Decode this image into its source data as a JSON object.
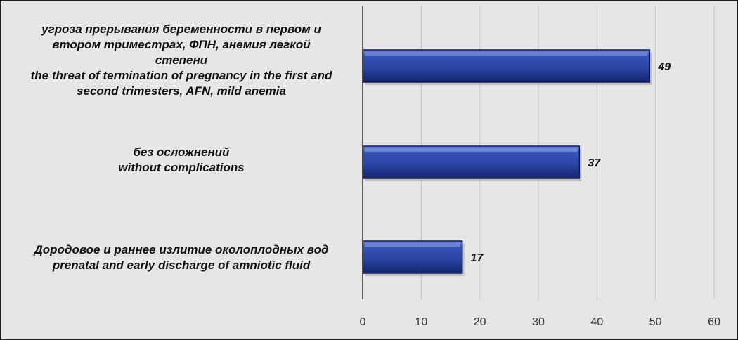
{
  "chart_data": {
    "type": "bar",
    "orientation": "horizontal",
    "categories": [
      [
        "угроза прерывания беременности в первом и",
        "втором триместрах, ФПН, анемия легкой",
        "степени",
        "the threat of termination of pregnancy in the first and",
        "second trimesters,  AFN, mild anemia"
      ],
      [
        "без осложнений",
        "without complications"
      ],
      [
        "Дородовое и раннее излитие околоплодных вод",
        "prenatal and early discharge of amniotic fluid"
      ]
    ],
    "values": [
      49,
      37,
      17
    ],
    "value_labels": [
      "49",
      "37",
      "17"
    ],
    "xlim": [
      0,
      60
    ],
    "ticks": [
      "0",
      "10",
      "20",
      "30",
      "40",
      "50",
      "60"
    ],
    "grid": true,
    "legend": "none",
    "title": "",
    "xlabel": "",
    "ylabel": "",
    "colors": {
      "bar": "#2e4aa8",
      "bar_dark": "#14236a",
      "background": "#e6e6e6",
      "grid": "#c4c4c4",
      "axis": "#333333"
    }
  }
}
